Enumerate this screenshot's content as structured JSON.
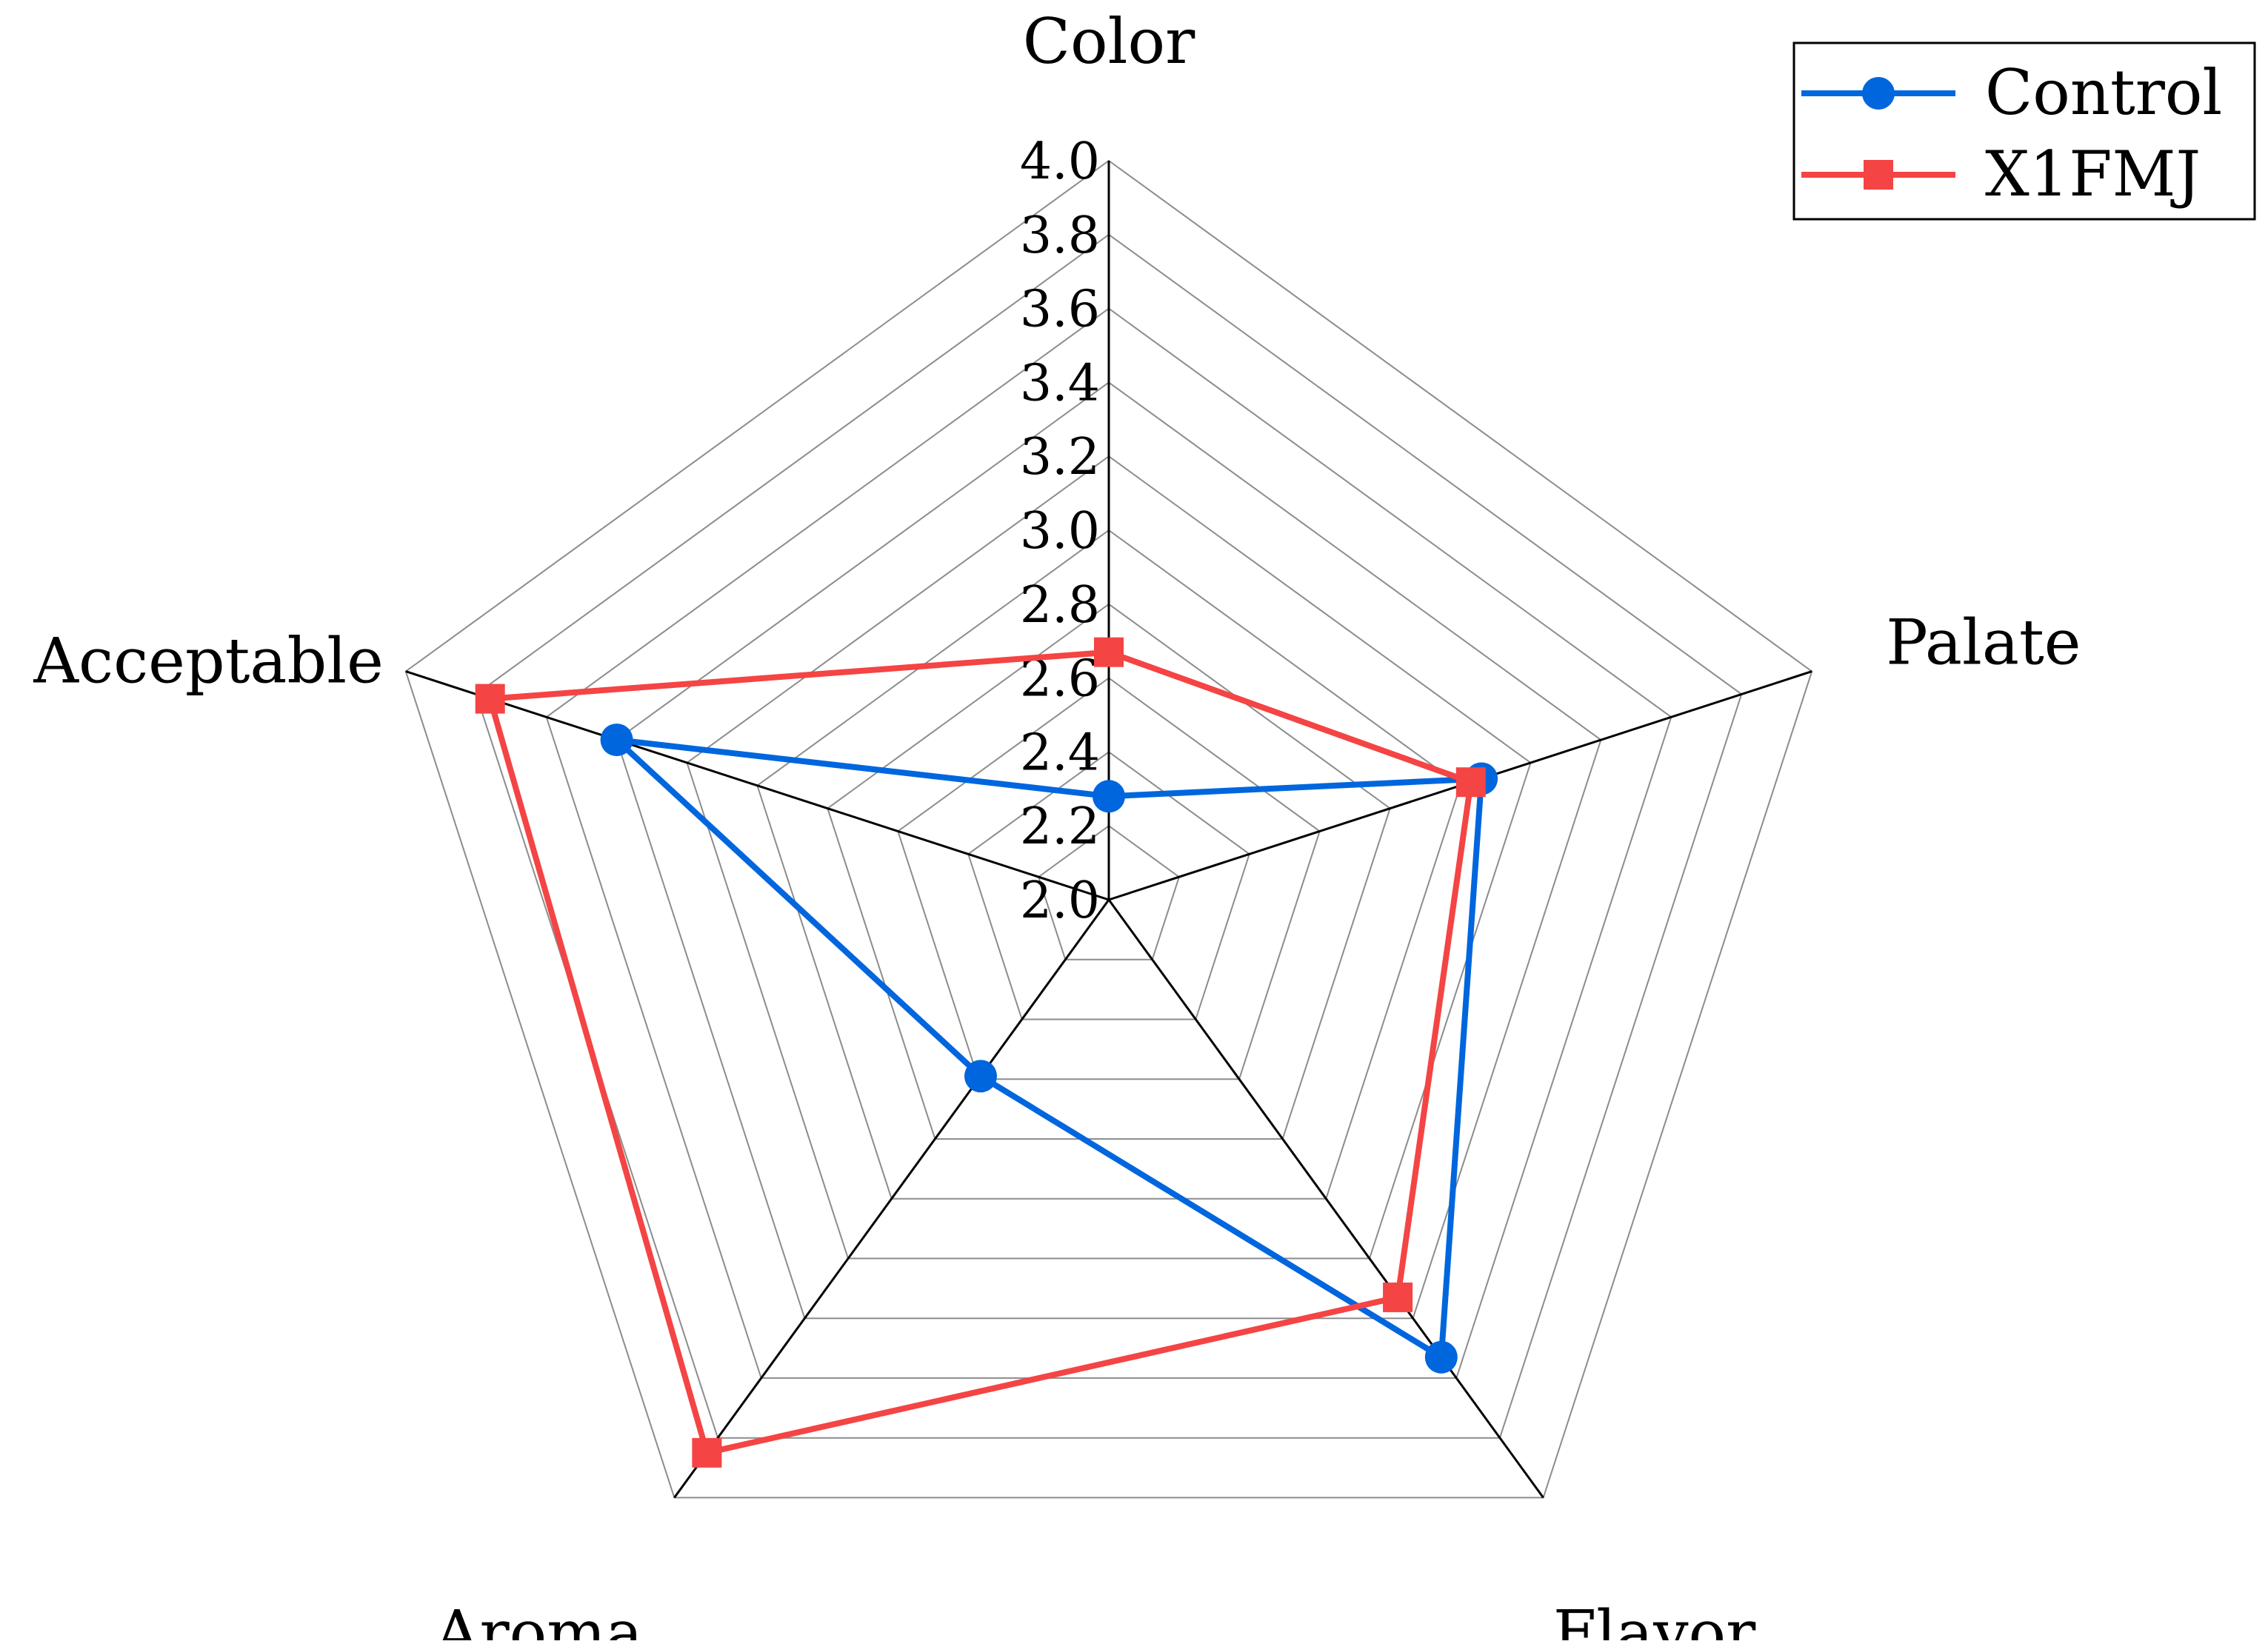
{
  "chart_data": {
    "type": "radar",
    "axes": [
      "Color",
      "Palate",
      "Flavor",
      "Aroma",
      "Acceptable"
    ],
    "r_range": [
      2.0,
      4.0
    ],
    "r_ticks": [
      "2.0",
      "2.2",
      "2.4",
      "2.6",
      "2.8",
      "3.0",
      "3.2",
      "3.4",
      "3.6",
      "3.8",
      "4.0"
    ],
    "grid": true,
    "legend_position": "top-right",
    "series": [
      {
        "name": "Control",
        "values": [
          2.28,
          3.06,
          3.53,
          2.59,
          3.4
        ],
        "color": "#0066dd",
        "marker": "circle"
      },
      {
        "name": "X1FMJ",
        "values": [
          2.67,
          3.03,
          3.33,
          3.85,
          3.76
        ],
        "color": "#f44444",
        "marker": "square"
      }
    ]
  }
}
